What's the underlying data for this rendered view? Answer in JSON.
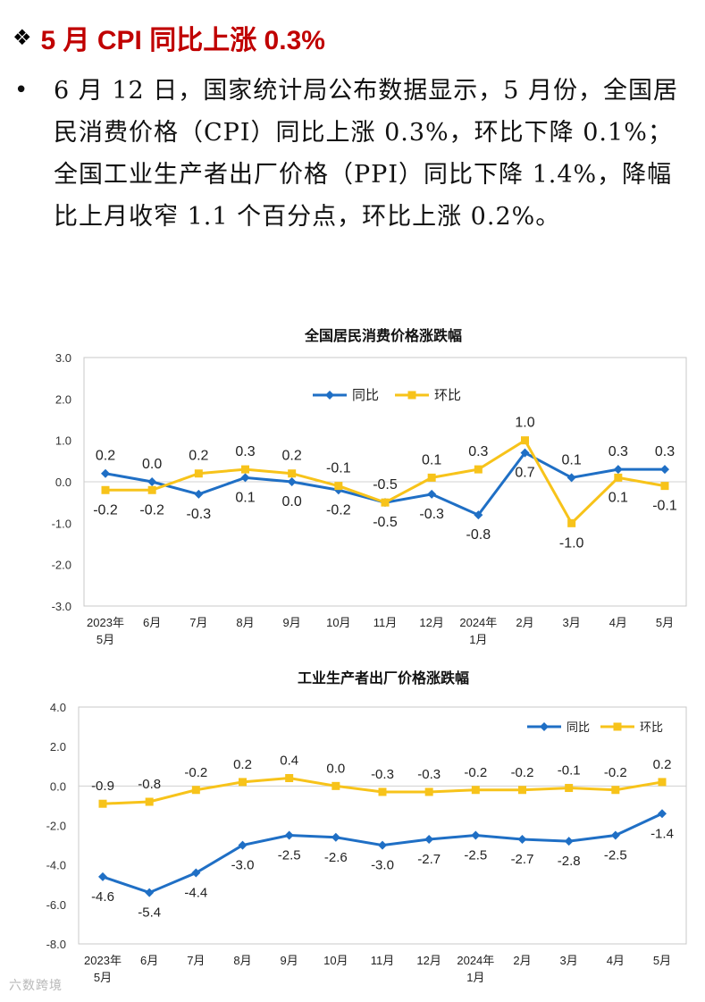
{
  "headline": {
    "marker": "❖",
    "title": "5 月 CPI 同比上涨 0.3%"
  },
  "bullet": {
    "marker": "•",
    "text": "6 月 12 日，国家统计局公布数据显示，5 月份，全国居民消费价格（CPI）同比上涨 0.3%，环比下降 0.1%；全国工业生产者出厂价格（PPI）同比下降 1.4%，降幅比上月收窄 1.1 个百分点，环比上涨 0.2%。"
  },
  "watermark": "六数跨境",
  "colors": {
    "series1": "#1f6fc5",
    "series2": "#f7c31a",
    "headline": "#c00000"
  },
  "chart_data": [
    {
      "type": "line",
      "title": "全国居民消费价格涨跌幅",
      "categories": [
        [
          "2023年",
          "5月"
        ],
        [
          "6月"
        ],
        [
          "7月"
        ],
        [
          "8月"
        ],
        [
          "9月"
        ],
        [
          "10月"
        ],
        [
          "11月"
        ],
        [
          "12月"
        ],
        [
          "2024年",
          "1月"
        ],
        [
          "2月"
        ],
        [
          "3月"
        ],
        [
          "4月"
        ],
        [
          "5月"
        ]
      ],
      "ylim": [
        -3.0,
        3.0
      ],
      "yticks": [
        "3.0",
        "2.0",
        "1.0",
        "0.0",
        "-1.0",
        "-2.0",
        "-3.0"
      ],
      "legend": "top-center",
      "series": [
        {
          "name": "同比",
          "values": [
            0.2,
            0.0,
            -0.3,
            0.1,
            0.0,
            -0.2,
            -0.5,
            -0.3,
            -0.8,
            0.7,
            0.1,
            0.3,
            0.3
          ],
          "labels": [
            "0.2",
            "0.0",
            "-0.3",
            "0.1",
            "0.0",
            "-0.2",
            "-0.5",
            "-0.3",
            "-0.8",
            "0.7",
            "0.1",
            "0.3",
            "0.3"
          ]
        },
        {
          "name": "环比",
          "values": [
            -0.2,
            -0.2,
            0.2,
            0.3,
            0.2,
            -0.1,
            -0.5,
            0.1,
            0.3,
            1.0,
            -1.0,
            0.1,
            -0.1
          ],
          "labels": [
            "-0.2",
            "-0.2",
            "0.2",
            "0.3",
            "0.2",
            "-0.1",
            "-0.5",
            "0.1",
            "0.3",
            "1.0",
            "-1.0",
            "0.1",
            "-0.1"
          ]
        }
      ]
    },
    {
      "type": "line",
      "title": "工业生产者出厂价格涨跌幅",
      "categories": [
        [
          "2023年",
          "5月"
        ],
        [
          "6月"
        ],
        [
          "7月"
        ],
        [
          "8月"
        ],
        [
          "9月"
        ],
        [
          "10月"
        ],
        [
          "11月"
        ],
        [
          "12月"
        ],
        [
          "2024年",
          "1月"
        ],
        [
          "2月"
        ],
        [
          "3月"
        ],
        [
          "4月"
        ],
        [
          "5月"
        ]
      ],
      "ylim": [
        -8.0,
        4.0
      ],
      "yticks": [
        "4.0",
        "2.0",
        "0.0",
        "-2.0",
        "-4.0",
        "-6.0",
        "-8.0"
      ],
      "legend": "top-right",
      "series": [
        {
          "name": "同比",
          "values": [
            -4.6,
            -5.4,
            -4.4,
            -3.0,
            -2.5,
            -2.6,
            -3.0,
            -2.7,
            -2.5,
            -2.7,
            -2.8,
            -2.5,
            -1.4
          ],
          "labels": [
            "-4.6",
            "-5.4",
            "-4.4",
            "-3.0",
            "-2.5",
            "-2.6",
            "-3.0",
            "-2.7",
            "-2.5",
            "-2.7",
            "-2.8",
            "-2.5",
            "-1.4"
          ]
        },
        {
          "name": "环比",
          "values": [
            -0.9,
            -0.8,
            -0.2,
            0.2,
            0.4,
            0.0,
            -0.3,
            -0.3,
            -0.2,
            -0.2,
            -0.1,
            -0.2,
            0.2
          ],
          "labels": [
            "-0.9",
            "-0.8",
            "-0.2",
            "0.2",
            "0.4",
            "0.0",
            "-0.3",
            "-0.3",
            "-0.2",
            "-0.2",
            "-0.1",
            "-0.2",
            "0.2"
          ]
        }
      ]
    }
  ]
}
